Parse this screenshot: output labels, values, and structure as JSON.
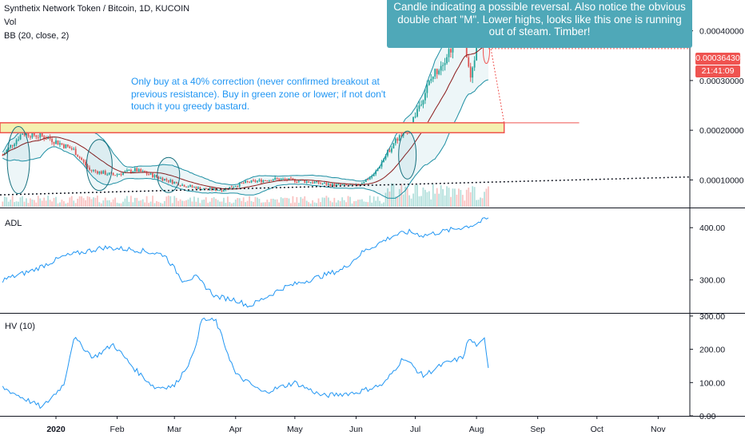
{
  "legend": {
    "symbol": "Synthetix Network Token / Bitcoin, 1D, KUCOIN",
    "vol": "Vol",
    "bb": "BB (20, close, 2)"
  },
  "price_tags": {
    "last_price": "0.00036430",
    "countdown": "21:41:09",
    "last_price_color": "#ef5350"
  },
  "annotations": {
    "callout": "Candle indicating a possible reversal. Also notice the obvious double chart \"M\". Lower highs, looks like this one is running out of steam. Timber!",
    "note": "Only buy at a 40% correction (never confirmed breakout at previous resistance). Buy in green zone or lower; if not don't touch it you greedy bastard."
  },
  "colors": {
    "up": "#26a69a",
    "down": "#ef5350",
    "line": "#2196f3",
    "bb_band": "#1e8fa3",
    "bb_basis": "#8b1a1a",
    "zone_fill": "#f5f0b0",
    "callout": "#4fa8b8"
  },
  "chart_data": [
    {
      "type": "candlestick",
      "title": "Synthetix Network Token / Bitcoin, 1D, KUCOIN",
      "y_ticks": [
        "0.00040000",
        "0.00030000",
        "0.00020000",
        "0.00010000"
      ],
      "ylim": [
        4.45e-05,
        0.000462
      ],
      "x_ticks": [
        "2020",
        "Feb",
        "Mar",
        "Apr",
        "May",
        "Jun",
        "Jul",
        "Aug",
        "Sep",
        "Oct",
        "Nov"
      ],
      "last_price": 0.0003643,
      "close_trend": [
        {
          "date": "2019-12-05",
          "close": 0.00015
        },
        {
          "date": "2019-12-15",
          "close": 0.000195
        },
        {
          "date": "2019-12-28",
          "close": 0.000185
        },
        {
          "date": "2020-01-10",
          "close": 0.00016
        },
        {
          "date": "2020-01-18",
          "close": 0.00012
        },
        {
          "date": "2020-01-30",
          "close": 0.00011
        },
        {
          "date": "2020-02-10",
          "close": 0.00012
        },
        {
          "date": "2020-02-22",
          "close": 0.000105
        },
        {
          "date": "2020-03-05",
          "close": 9e-05
        },
        {
          "date": "2020-03-15",
          "close": 8.2e-05
        },
        {
          "date": "2020-03-25",
          "close": 8e-05
        },
        {
          "date": "2020-04-05",
          "close": 9.4e-05
        },
        {
          "date": "2020-04-20",
          "close": 0.000102
        },
        {
          "date": "2020-05-05",
          "close": 9.8e-05
        },
        {
          "date": "2020-05-20",
          "close": 9e-05
        },
        {
          "date": "2020-06-01",
          "close": 8.8e-05
        },
        {
          "date": "2020-06-10",
          "close": 0.00011
        },
        {
          "date": "2020-06-20",
          "close": 0.000175
        },
        {
          "date": "2020-06-28",
          "close": 0.000205
        },
        {
          "date": "2020-07-05",
          "close": 0.00027
        },
        {
          "date": "2020-07-10",
          "close": 0.00031
        },
        {
          "date": "2020-07-18",
          "close": 0.00036
        },
        {
          "date": "2020-07-25",
          "close": 0.00041
        },
        {
          "date": "2020-07-29",
          "close": 0.0003
        },
        {
          "date": "2020-08-02",
          "close": 0.00039
        },
        {
          "date": "2020-08-05",
          "close": 0.000395
        },
        {
          "date": "2020-08-07",
          "close": 0.000364
        }
      ],
      "resistance_zone": [
        0.000195,
        0.000215
      ],
      "series": [
        {
          "name": "Vol"
        },
        {
          "name": "BB (20, close, 2)"
        }
      ]
    },
    {
      "type": "line",
      "title": "ADL",
      "y_ticks": [
        "400.00",
        "300.00"
      ],
      "ylim": [
        237,
        437
      ],
      "points": [
        {
          "date": "2019-12-05",
          "value": 300
        },
        {
          "date": "2019-12-20",
          "value": 318
        },
        {
          "date": "2020-01-05",
          "value": 345
        },
        {
          "date": "2020-01-25",
          "value": 362
        },
        {
          "date": "2020-02-10",
          "value": 358
        },
        {
          "date": "2020-02-25",
          "value": 348
        },
        {
          "date": "2020-03-05",
          "value": 300
        },
        {
          "date": "2020-03-12",
          "value": 305
        },
        {
          "date": "2020-03-22",
          "value": 268
        },
        {
          "date": "2020-04-01",
          "value": 262
        },
        {
          "date": "2020-04-08",
          "value": 250
        },
        {
          "date": "2020-04-25",
          "value": 285
        },
        {
          "date": "2020-05-10",
          "value": 302
        },
        {
          "date": "2020-05-25",
          "value": 320
        },
        {
          "date": "2020-06-05",
          "value": 355
        },
        {
          "date": "2020-06-20",
          "value": 385
        },
        {
          "date": "2020-06-28",
          "value": 392
        },
        {
          "date": "2020-07-05",
          "value": 385
        },
        {
          "date": "2020-07-18",
          "value": 395
        },
        {
          "date": "2020-07-30",
          "value": 405
        },
        {
          "date": "2020-08-07",
          "value": 418
        }
      ]
    },
    {
      "type": "line",
      "title": "HV (10)",
      "y_ticks": [
        "300.00",
        "200.00",
        "100.00",
        "0.00"
      ],
      "ylim": [
        0,
        307
      ],
      "points": [
        {
          "date": "2019-12-05",
          "value": 85
        },
        {
          "date": "2019-12-15",
          "value": 55
        },
        {
          "date": "2019-12-25",
          "value": 25
        },
        {
          "date": "2020-01-05",
          "value": 95
        },
        {
          "date": "2020-01-10",
          "value": 235
        },
        {
          "date": "2020-01-20",
          "value": 175
        },
        {
          "date": "2020-01-30",
          "value": 215
        },
        {
          "date": "2020-02-10",
          "value": 140
        },
        {
          "date": "2020-02-20",
          "value": 85
        },
        {
          "date": "2020-03-01",
          "value": 90
        },
        {
          "date": "2020-03-10",
          "value": 175
        },
        {
          "date": "2020-03-15",
          "value": 290
        },
        {
          "date": "2020-03-22",
          "value": 285
        },
        {
          "date": "2020-04-01",
          "value": 125
        },
        {
          "date": "2020-04-15",
          "value": 70
        },
        {
          "date": "2020-05-01",
          "value": 100
        },
        {
          "date": "2020-05-15",
          "value": 60
        },
        {
          "date": "2020-06-01",
          "value": 70
        },
        {
          "date": "2020-06-15",
          "value": 95
        },
        {
          "date": "2020-06-25",
          "value": 175
        },
        {
          "date": "2020-07-05",
          "value": 120
        },
        {
          "date": "2020-07-15",
          "value": 155
        },
        {
          "date": "2020-07-25",
          "value": 175
        },
        {
          "date": "2020-07-28",
          "value": 230
        },
        {
          "date": "2020-08-02",
          "value": 210
        },
        {
          "date": "2020-08-05",
          "value": 230
        },
        {
          "date": "2020-08-07",
          "value": 150
        }
      ]
    }
  ]
}
